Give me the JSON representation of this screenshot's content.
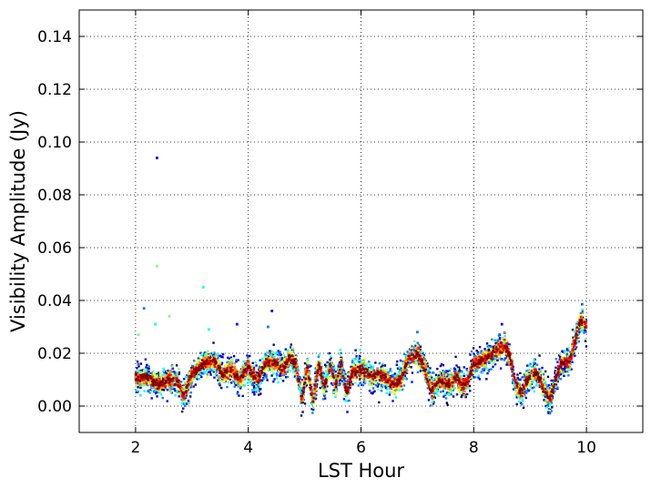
{
  "chart_data": {
    "type": "scatter",
    "title": "",
    "xlabel": "LST Hour",
    "ylabel": "Visibility Amplitude (Jy)",
    "xlim": [
      1,
      11
    ],
    "ylim": [
      -0.01,
      0.15
    ],
    "xticks": [
      2,
      4,
      6,
      8,
      10
    ],
    "xtick_labels": [
      "2",
      "4",
      "6",
      "8",
      "10"
    ],
    "yticks": [
      0.0,
      0.02,
      0.04,
      0.06,
      0.08,
      0.1,
      0.12,
      0.14
    ],
    "ytick_labels": [
      "0.00",
      "0.02",
      "0.04",
      "0.06",
      "0.08",
      "0.10",
      "0.12",
      "0.14"
    ],
    "grid": true,
    "legend": "none",
    "colormap": [
      "#00007f",
      "#0000ff",
      "#007fff",
      "#00ffff",
      "#7fff7f",
      "#ffff00",
      "#ff7f00",
      "#ff0000",
      "#7f0000"
    ],
    "trend": {
      "x": [
        2.0,
        2.2,
        2.4,
        2.6,
        2.75,
        2.85,
        3.0,
        3.2,
        3.4,
        3.55,
        3.7,
        3.85,
        4.0,
        4.15,
        4.3,
        4.45,
        4.6,
        4.75,
        4.85,
        4.95,
        5.05,
        5.15,
        5.25,
        5.35,
        5.45,
        5.55,
        5.65,
        5.75,
        5.85,
        6.0,
        6.2,
        6.4,
        6.55,
        6.7,
        6.85,
        7.0,
        7.1,
        7.25,
        7.4,
        7.55,
        7.7,
        7.8,
        7.9,
        8.0,
        8.2,
        8.4,
        8.55,
        8.65,
        8.75,
        8.85,
        8.95,
        9.1,
        9.25,
        9.35,
        9.45,
        9.55,
        9.7,
        9.8,
        9.9,
        10.0
      ],
      "y": [
        0.011,
        0.011,
        0.008,
        0.01,
        0.009,
        0.004,
        0.012,
        0.016,
        0.017,
        0.012,
        0.014,
        0.01,
        0.015,
        0.009,
        0.016,
        0.017,
        0.014,
        0.019,
        0.015,
        0.002,
        0.015,
        0.002,
        0.016,
        0.007,
        0.016,
        0.008,
        0.016,
        0.005,
        0.013,
        0.014,
        0.011,
        0.012,
        0.008,
        0.01,
        0.018,
        0.02,
        0.016,
        0.006,
        0.01,
        0.008,
        0.011,
        0.007,
        0.01,
        0.016,
        0.018,
        0.021,
        0.023,
        0.018,
        0.008,
        0.005,
        0.01,
        0.013,
        0.007,
        0.002,
        0.01,
        0.016,
        0.017,
        0.025,
        0.033,
        0.03
      ]
    },
    "outliers": [
      {
        "x": 2.38,
        "y": 0.094
      },
      {
        "x": 2.38,
        "y": 0.053
      },
      {
        "x": 3.2,
        "y": 0.045
      },
      {
        "x": 2.15,
        "y": 0.037
      },
      {
        "x": 4.42,
        "y": 0.036
      },
      {
        "x": 2.6,
        "y": 0.034
      },
      {
        "x": 2.35,
        "y": 0.031
      },
      {
        "x": 4.35,
        "y": 0.03
      },
      {
        "x": 3.8,
        "y": 0.031
      },
      {
        "x": 2.05,
        "y": 0.027
      },
      {
        "x": 3.3,
        "y": 0.029
      },
      {
        "x": 7.0,
        "y": 0.028
      },
      {
        "x": 8.5,
        "y": 0.031
      },
      {
        "x": 2.95,
        "y": 0.001
      },
      {
        "x": 9.35,
        "y": 0.001
      }
    ]
  }
}
